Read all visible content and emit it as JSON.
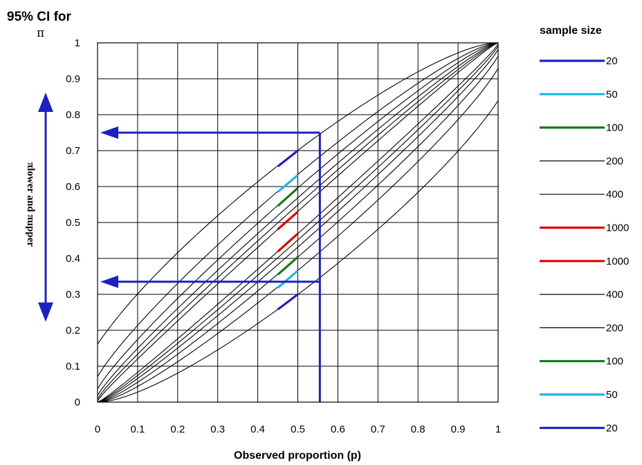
{
  "chart_data": {
    "type": "line",
    "title": "95% CI for",
    "title_symbol": "π",
    "xlabel": "Observed proportion (p)",
    "ylabel": "πlower and πupper",
    "xlim": [
      0,
      1
    ],
    "ylim": [
      0,
      1
    ],
    "x_ticks": [
      "0",
      "0.1",
      "0.2",
      "0.3",
      "0.4",
      "0.5",
      "0.6",
      "0.7",
      "0.8",
      "0.9",
      "1"
    ],
    "y_ticks": [
      "0",
      "0.1",
      "0.2",
      "0.3",
      "0.4",
      "0.5",
      "0.6",
      "0.7",
      "0.8",
      "0.9",
      "1"
    ],
    "grid": true,
    "legend_title": "sample size",
    "legend_placement": "right",
    "legend": [
      {
        "label": "20",
        "color": "#1f1fbf"
      },
      {
        "label": "50",
        "color": "#1fb4e8"
      },
      {
        "label": "100",
        "color": "#0e7a1e"
      },
      {
        "label": "200",
        "color": "#000000"
      },
      {
        "label": "400",
        "color": "#000000"
      },
      {
        "label": "1000",
        "color": "#e00000"
      },
      {
        "label": "1000",
        "color": "#e00000"
      },
      {
        "label": "400",
        "color": "#000000"
      },
      {
        "label": "200",
        "color": "#000000"
      },
      {
        "label": "100",
        "color": "#0e7a1e"
      },
      {
        "label": "50",
        "color": "#1fb4e8"
      },
      {
        "label": "20",
        "color": "#1f1fbf"
      }
    ],
    "curve_sample_sizes": [
      20,
      50,
      100,
      200,
      400,
      1000
    ],
    "highlight_segments": [
      {
        "n": 20,
        "bound": "upper",
        "color": "#1f1fbf",
        "x": [
          0.45,
          0.5
        ],
        "y": [
          0.656,
          0.7
        ]
      },
      {
        "n": 50,
        "bound": "upper",
        "color": "#1fb4e8",
        "x": [
          0.45,
          0.5
        ],
        "y": [
          0.585,
          0.632
        ]
      },
      {
        "n": 100,
        "bound": "upper",
        "color": "#0e7a1e",
        "x": [
          0.45,
          0.5
        ],
        "y": [
          0.546,
          0.596
        ]
      },
      {
        "n": 1000,
        "bound": "upper",
        "color": "#e00000",
        "x": [
          0.45,
          0.5
        ],
        "y": [
          0.481,
          0.53
        ]
      },
      {
        "n": 1000,
        "bound": "lower",
        "color": "#e00000",
        "x": [
          0.45,
          0.5
        ],
        "y": [
          0.419,
          0.469
        ]
      },
      {
        "n": 100,
        "bound": "lower",
        "color": "#0e7a1e",
        "x": [
          0.45,
          0.5
        ],
        "y": [
          0.355,
          0.404
        ]
      },
      {
        "n": 50,
        "bound": "lower",
        "color": "#1fb4e8",
        "x": [
          0.45,
          0.5
        ],
        "y": [
          0.318,
          0.366
        ]
      },
      {
        "n": 20,
        "bound": "lower",
        "color": "#1f1fbf",
        "x": [
          0.45,
          0.5
        ],
        "y": [
          0.258,
          0.3
        ]
      }
    ],
    "annotation": {
      "color": "#1f1fbf",
      "p": 0.555,
      "upper": 0.75,
      "lower": 0.335
    }
  }
}
